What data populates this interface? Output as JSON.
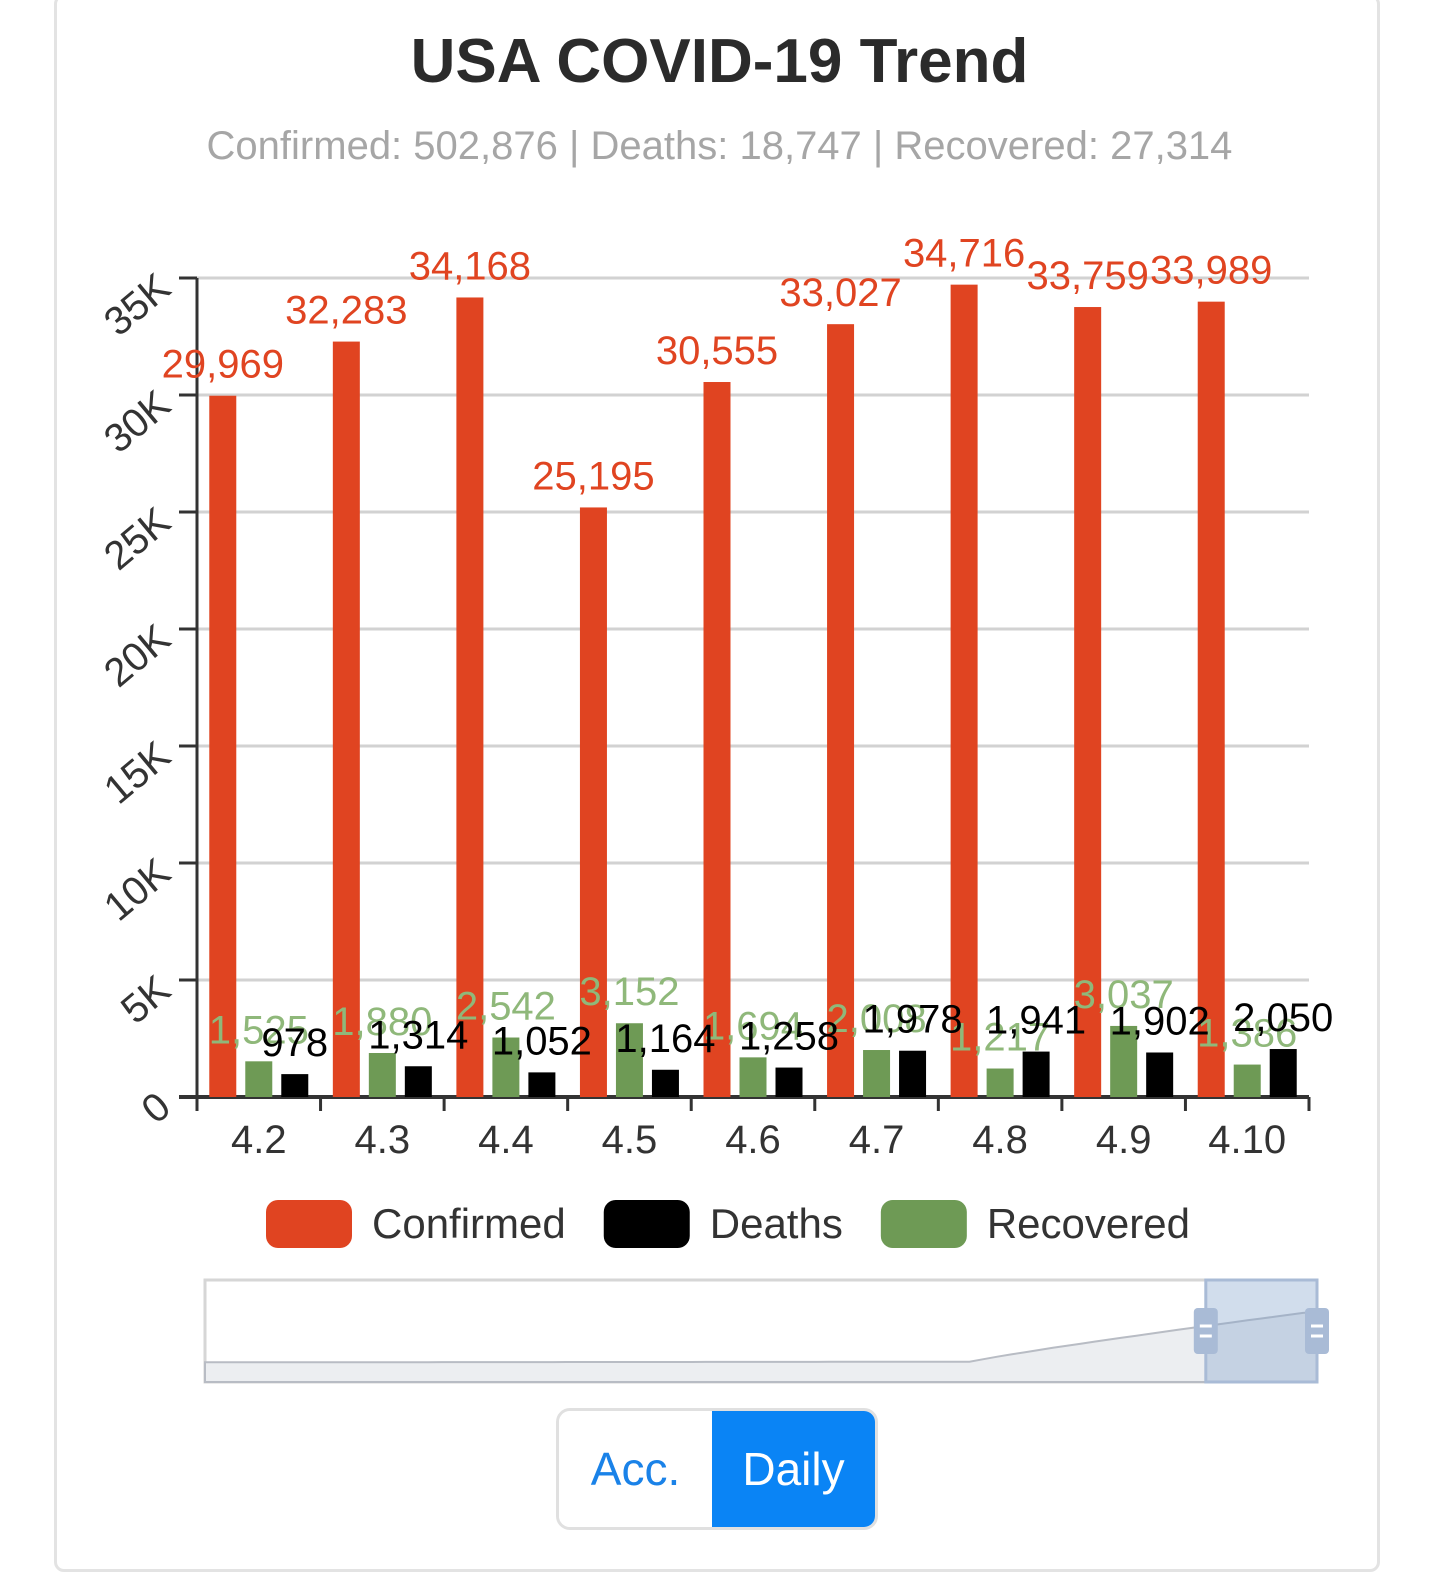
{
  "header": {
    "title": "USA COVID-19 Trend",
    "subtitle": "Confirmed: 502,876 | Deaths: 18,747 | Recovered: 27,314"
  },
  "toggle": {
    "acc_label": "Acc.",
    "daily_label": "Daily",
    "selected": "Daily"
  },
  "chart_data": {
    "type": "bar",
    "categories": [
      "4.2",
      "4.3",
      "4.4",
      "4.5",
      "4.6",
      "4.7",
      "4.8",
      "4.9",
      "4.10"
    ],
    "series": [
      {
        "name": "Confirmed",
        "color": "#e04421",
        "values": [
          29969,
          32283,
          34168,
          25195,
          30555,
          33027,
          34716,
          33759,
          33989
        ],
        "labels": [
          "29,969",
          "32,283",
          "34,168",
          "25,195",
          "30,555",
          "33,027",
          "34,716",
          "33,759",
          "33,989"
        ]
      },
      {
        "name": "Recovered",
        "color": "#6e9a55",
        "values": [
          1525,
          1880,
          2542,
          3152,
          1694,
          2008,
          1217,
          3037,
          1386
        ],
        "labels": [
          "1,525",
          "1,880",
          "2,542",
          "3,152",
          "1,694",
          "2,008",
          "1,217",
          "3,037",
          "1,386"
        ]
      },
      {
        "name": "Deaths",
        "color": "#000000",
        "values": [
          978,
          1314,
          1052,
          1164,
          1258,
          1978,
          1941,
          1902,
          2050
        ],
        "labels": [
          "978",
          "1,314",
          "1,052",
          "1,164",
          "1,258",
          "1,978",
          "1,941",
          "1,902",
          "2,050"
        ]
      }
    ],
    "yticks": [
      "0",
      "5K",
      "10K",
      "15K",
      "20K",
      "25K",
      "30K",
      "35K"
    ],
    "ylim": [
      0,
      35000
    ],
    "grid": true,
    "legend": [
      {
        "name": "Confirmed",
        "color": "#e04421"
      },
      {
        "name": "Deaths",
        "color": "#000000"
      },
      {
        "name": "Recovered",
        "color": "#6e9a55"
      }
    ],
    "legend_position": "bottom",
    "data_zoom": {
      "range_start": 0.9,
      "range_end": 1.0
    }
  }
}
